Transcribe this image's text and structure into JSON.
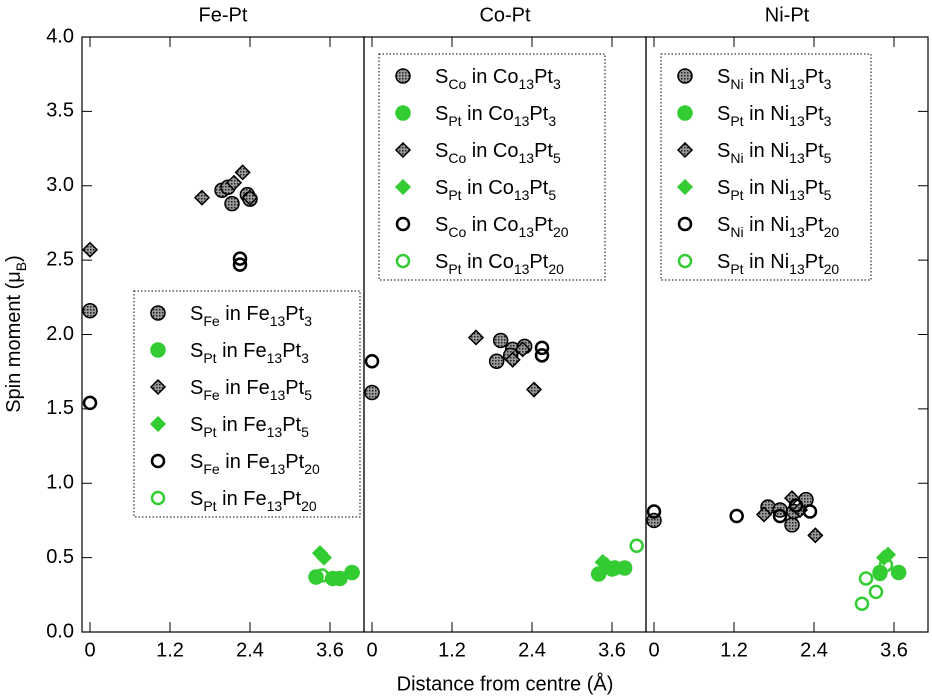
{
  "chart_data": [
    {
      "type": "scatter",
      "title": "Fe-Pt",
      "ylabel": [
        "Spin moment (μ",
        "B",
        ")"
      ],
      "xlim": [
        -0.12,
        4.11
      ],
      "ylim": [
        0,
        4
      ],
      "xticks": [
        0,
        1.2,
        2.4,
        3.6
      ],
      "yticks": [
        {
          "value": 0,
          "label": "0.0"
        },
        {
          "value": 0.5,
          "label": "0.5"
        },
        {
          "value": 1,
          "label": "1.0"
        },
        {
          "value": 1.5,
          "label": "1.5"
        },
        {
          "value": 2,
          "label": "2.0"
        },
        {
          "value": 2.5,
          "label": "2.5"
        },
        {
          "value": 3,
          "label": "3.0"
        },
        {
          "value": 3.5,
          "label": "3.5"
        },
        {
          "value": 4,
          "label": "4.0"
        }
      ],
      "legend_loc": "center right",
      "series": [
        {
          "name": [
            "S",
            "Fe",
            " in Fe",
            "13",
            "Pt",
            "3"
          ],
          "marker": "circle",
          "fill": "hatched",
          "color": "#000000",
          "x": [
            0,
            1.98,
            2.07,
            2.13,
            2.36,
            2.4
          ],
          "y": [
            2.16,
            2.97,
            2.99,
            2.88,
            2.94,
            2.91
          ]
        },
        {
          "name": [
            "S",
            "Pt",
            " in Fe",
            "13",
            "Pt",
            "3"
          ],
          "marker": "circle",
          "fill": "solid",
          "color": "#33cc33",
          "x": [
            3.39,
            3.64,
            3.75,
            3.93
          ],
          "y": [
            0.37,
            0.36,
            0.36,
            0.4
          ]
        },
        {
          "name": [
            "S",
            "Fe",
            " in Fe",
            "13",
            "Pt",
            "5"
          ],
          "marker": "diamond",
          "fill": "hatched",
          "color": "#000000",
          "x": [
            0,
            1.68,
            2.16,
            2.29,
            2.4
          ],
          "y": [
            2.57,
            2.92,
            3.02,
            3.09,
            2.92
          ]
        },
        {
          "name": [
            "S",
            "Pt",
            " in Fe",
            "13",
            "Pt",
            "5"
          ],
          "marker": "diamond",
          "fill": "solid",
          "color": "#33cc33",
          "x": [
            3.45,
            3.51
          ],
          "y": [
            0.53,
            0.5
          ]
        },
        {
          "name": [
            "S",
            "Fe",
            " in Fe",
            "13",
            "Pt",
            "20"
          ],
          "marker": "circle",
          "fill": "none",
          "color": "#000000",
          "x": [
            0,
            2.25,
            2.25
          ],
          "y": [
            1.54,
            2.51,
            2.47
          ]
        },
        {
          "name": [
            "S",
            "Pt",
            " in Fe",
            "13",
            "Pt",
            "20"
          ],
          "marker": "circle",
          "fill": "none",
          "color": "#33cc33",
          "x": [
            3.48,
            3.72,
            3.94
          ],
          "y": [
            0.38,
            0.36,
            0.4
          ]
        }
      ]
    },
    {
      "type": "scatter",
      "title": "Co-Pt",
      "xlabel": "Distance from centre (Å)",
      "xlim": [
        -0.12,
        4.11
      ],
      "ylim": [
        0,
        4
      ],
      "xticks": [
        0,
        1.2,
        2.4,
        3.6
      ],
      "legend_loc": "upper center",
      "series": [
        {
          "name": [
            "S",
            "Co",
            " in Co",
            "13",
            "Pt",
            "3"
          ],
          "marker": "circle",
          "fill": "hatched",
          "color": "#000000",
          "x": [
            0,
            1.87,
            1.93,
            2.11,
            2.29,
            2.08
          ],
          "y": [
            1.61,
            1.82,
            1.96,
            1.9,
            1.92,
            1.86
          ]
        },
        {
          "name": [
            "S",
            "Pt",
            " in Co",
            "13",
            "Pt",
            "3"
          ],
          "marker": "circle",
          "fill": "solid",
          "color": "#33cc33",
          "x": [
            3.4,
            3.64,
            3.79
          ],
          "y": [
            0.39,
            0.43,
            0.43
          ]
        },
        {
          "name": [
            "S",
            "Co",
            " in Co",
            "13",
            "Pt",
            "5"
          ],
          "marker": "diamond",
          "fill": "hatched",
          "color": "#000000",
          "x": [
            1.56,
            2.11,
            2.26,
            2.43
          ],
          "y": [
            1.98,
            1.83,
            1.9,
            1.63
          ]
        },
        {
          "name": [
            "S",
            "Pt",
            " in Co",
            "13",
            "Pt",
            "5"
          ],
          "marker": "diamond",
          "fill": "solid",
          "color": "#33cc33",
          "x": [
            3.46,
            3.52
          ],
          "y": [
            0.47,
            0.45
          ]
        },
        {
          "name": [
            "S",
            "Co",
            " in Co",
            "13",
            "Pt",
            "20"
          ],
          "marker": "circle",
          "fill": "none",
          "color": "#000000",
          "x": [
            0,
            2.55,
            2.55
          ],
          "y": [
            1.82,
            1.91,
            1.86
          ]
        },
        {
          "name": [
            "S",
            "Pt",
            " in Co",
            "13",
            "Pt",
            "20"
          ],
          "marker": "circle",
          "fill": "none",
          "color": "#33cc33",
          "x": [
            3.6,
            3.97
          ],
          "y": [
            0.42,
            0.58
          ]
        }
      ]
    },
    {
      "type": "scatter",
      "title": "Ni-Pt",
      "xlim": [
        -0.12,
        4.11
      ],
      "ylim": [
        0,
        4
      ],
      "xticks": [
        0,
        1.2,
        2.4,
        3.6
      ],
      "legend_loc": "upper center",
      "series": [
        {
          "name": [
            "S",
            "Ni",
            " in Ni",
            "13",
            "Pt",
            "3"
          ],
          "marker": "circle",
          "fill": "hatched",
          "color": "#000000",
          "x": [
            0,
            1.71,
            1.89,
            2.07,
            2.28,
            2.1
          ],
          "y": [
            0.75,
            0.84,
            0.82,
            0.72,
            0.89,
            0.81
          ]
        },
        {
          "name": [
            "S",
            "Pt",
            " in Ni",
            "13",
            "Pt",
            "3"
          ],
          "marker": "circle",
          "fill": "solid",
          "color": "#33cc33",
          "x": [
            3.39,
            3.67
          ],
          "y": [
            0.4,
            0.4
          ]
        },
        {
          "name": [
            "S",
            "Ni",
            " in Ni",
            "13",
            "Pt",
            "5"
          ],
          "marker": "diamond",
          "fill": "hatched",
          "color": "#000000",
          "x": [
            1.65,
            2.07,
            2.42,
            2.19
          ],
          "y": [
            0.79,
            0.9,
            0.65,
            0.82
          ]
        },
        {
          "name": [
            "S",
            "Pt",
            " in Ni",
            "13",
            "Pt",
            "5"
          ],
          "marker": "diamond",
          "fill": "solid",
          "color": "#33cc33",
          "x": [
            3.45,
            3.51
          ],
          "y": [
            0.5,
            0.52
          ]
        },
        {
          "name": [
            "S",
            "Ni",
            " in Ni",
            "13",
            "Pt",
            "20"
          ],
          "marker": "circle",
          "fill": "none",
          "color": "#000000",
          "x": [
            0,
            1.24,
            1.89,
            2.13,
            2.34
          ],
          "y": [
            0.81,
            0.78,
            0.78,
            0.85,
            0.81
          ]
        },
        {
          "name": [
            "S",
            "Pt",
            " in Ni",
            "13",
            "Pt",
            "20"
          ],
          "marker": "circle",
          "fill": "none",
          "color": "#33cc33",
          "x": [
            3.12,
            3.18,
            3.33,
            3.39,
            3.48
          ],
          "y": [
            0.19,
            0.36,
            0.27,
            0.39,
            0.45
          ]
        }
      ]
    }
  ]
}
